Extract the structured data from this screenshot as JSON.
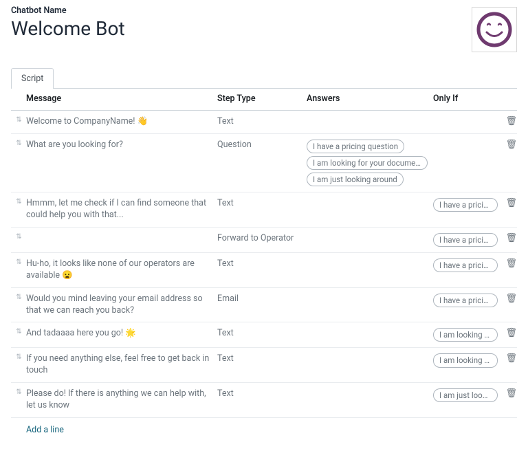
{
  "header": {
    "field_label": "Chatbot Name",
    "title": "Welcome Bot"
  },
  "avatar": {
    "stroke_color": "#6f3a6f",
    "bg_color": "#ffffff"
  },
  "tabs": {
    "script": "Script"
  },
  "columns": {
    "message": "Message",
    "step_type": "Step Type",
    "answers": "Answers",
    "only_if": "Only If"
  },
  "rows": [
    {
      "message": "Welcome to CompanyName! 👋",
      "step_type": "Text",
      "answers": [],
      "only_if": []
    },
    {
      "message": "What are you looking for?",
      "step_type": "Question",
      "answers": [
        "I have a pricing question",
        "I am looking for your documentati...",
        "I am just looking around"
      ],
      "only_if": []
    },
    {
      "message": "Hmmm, let me check if I can find someone that could help you with that...",
      "step_type": "Text",
      "answers": [],
      "only_if": [
        "I have a pricing question"
      ]
    },
    {
      "message": "",
      "step_type": "Forward to Operator",
      "answers": [],
      "only_if": [
        "I have a pricing question"
      ]
    },
    {
      "message": "Hu-ho, it looks like none of our operators are available 😦",
      "step_type": "Text",
      "answers": [],
      "only_if": [
        "I have a pricing question"
      ]
    },
    {
      "message": "Would you mind leaving your email address so that we can reach you back?",
      "step_type": "Email",
      "answers": [],
      "only_if": [
        "I have a pricing question"
      ]
    },
    {
      "message": "And tadaaaa here you go! 🌟",
      "step_type": "Text",
      "answers": [],
      "only_if": [
        "I am looking for your documentati..."
      ]
    },
    {
      "message": "If you need anything else, feel free to get back in touch",
      "step_type": "Text",
      "answers": [],
      "only_if": [
        "I am looking for your documentati..."
      ]
    },
    {
      "message": "Please do! If there is anything we can help with, let us know",
      "step_type": "Text",
      "answers": [],
      "only_if": [
        "I am just looking around"
      ]
    }
  ],
  "footer": {
    "add_line": "Add a line"
  },
  "icons": {
    "handle": "⇅",
    "trash": "🗑"
  }
}
